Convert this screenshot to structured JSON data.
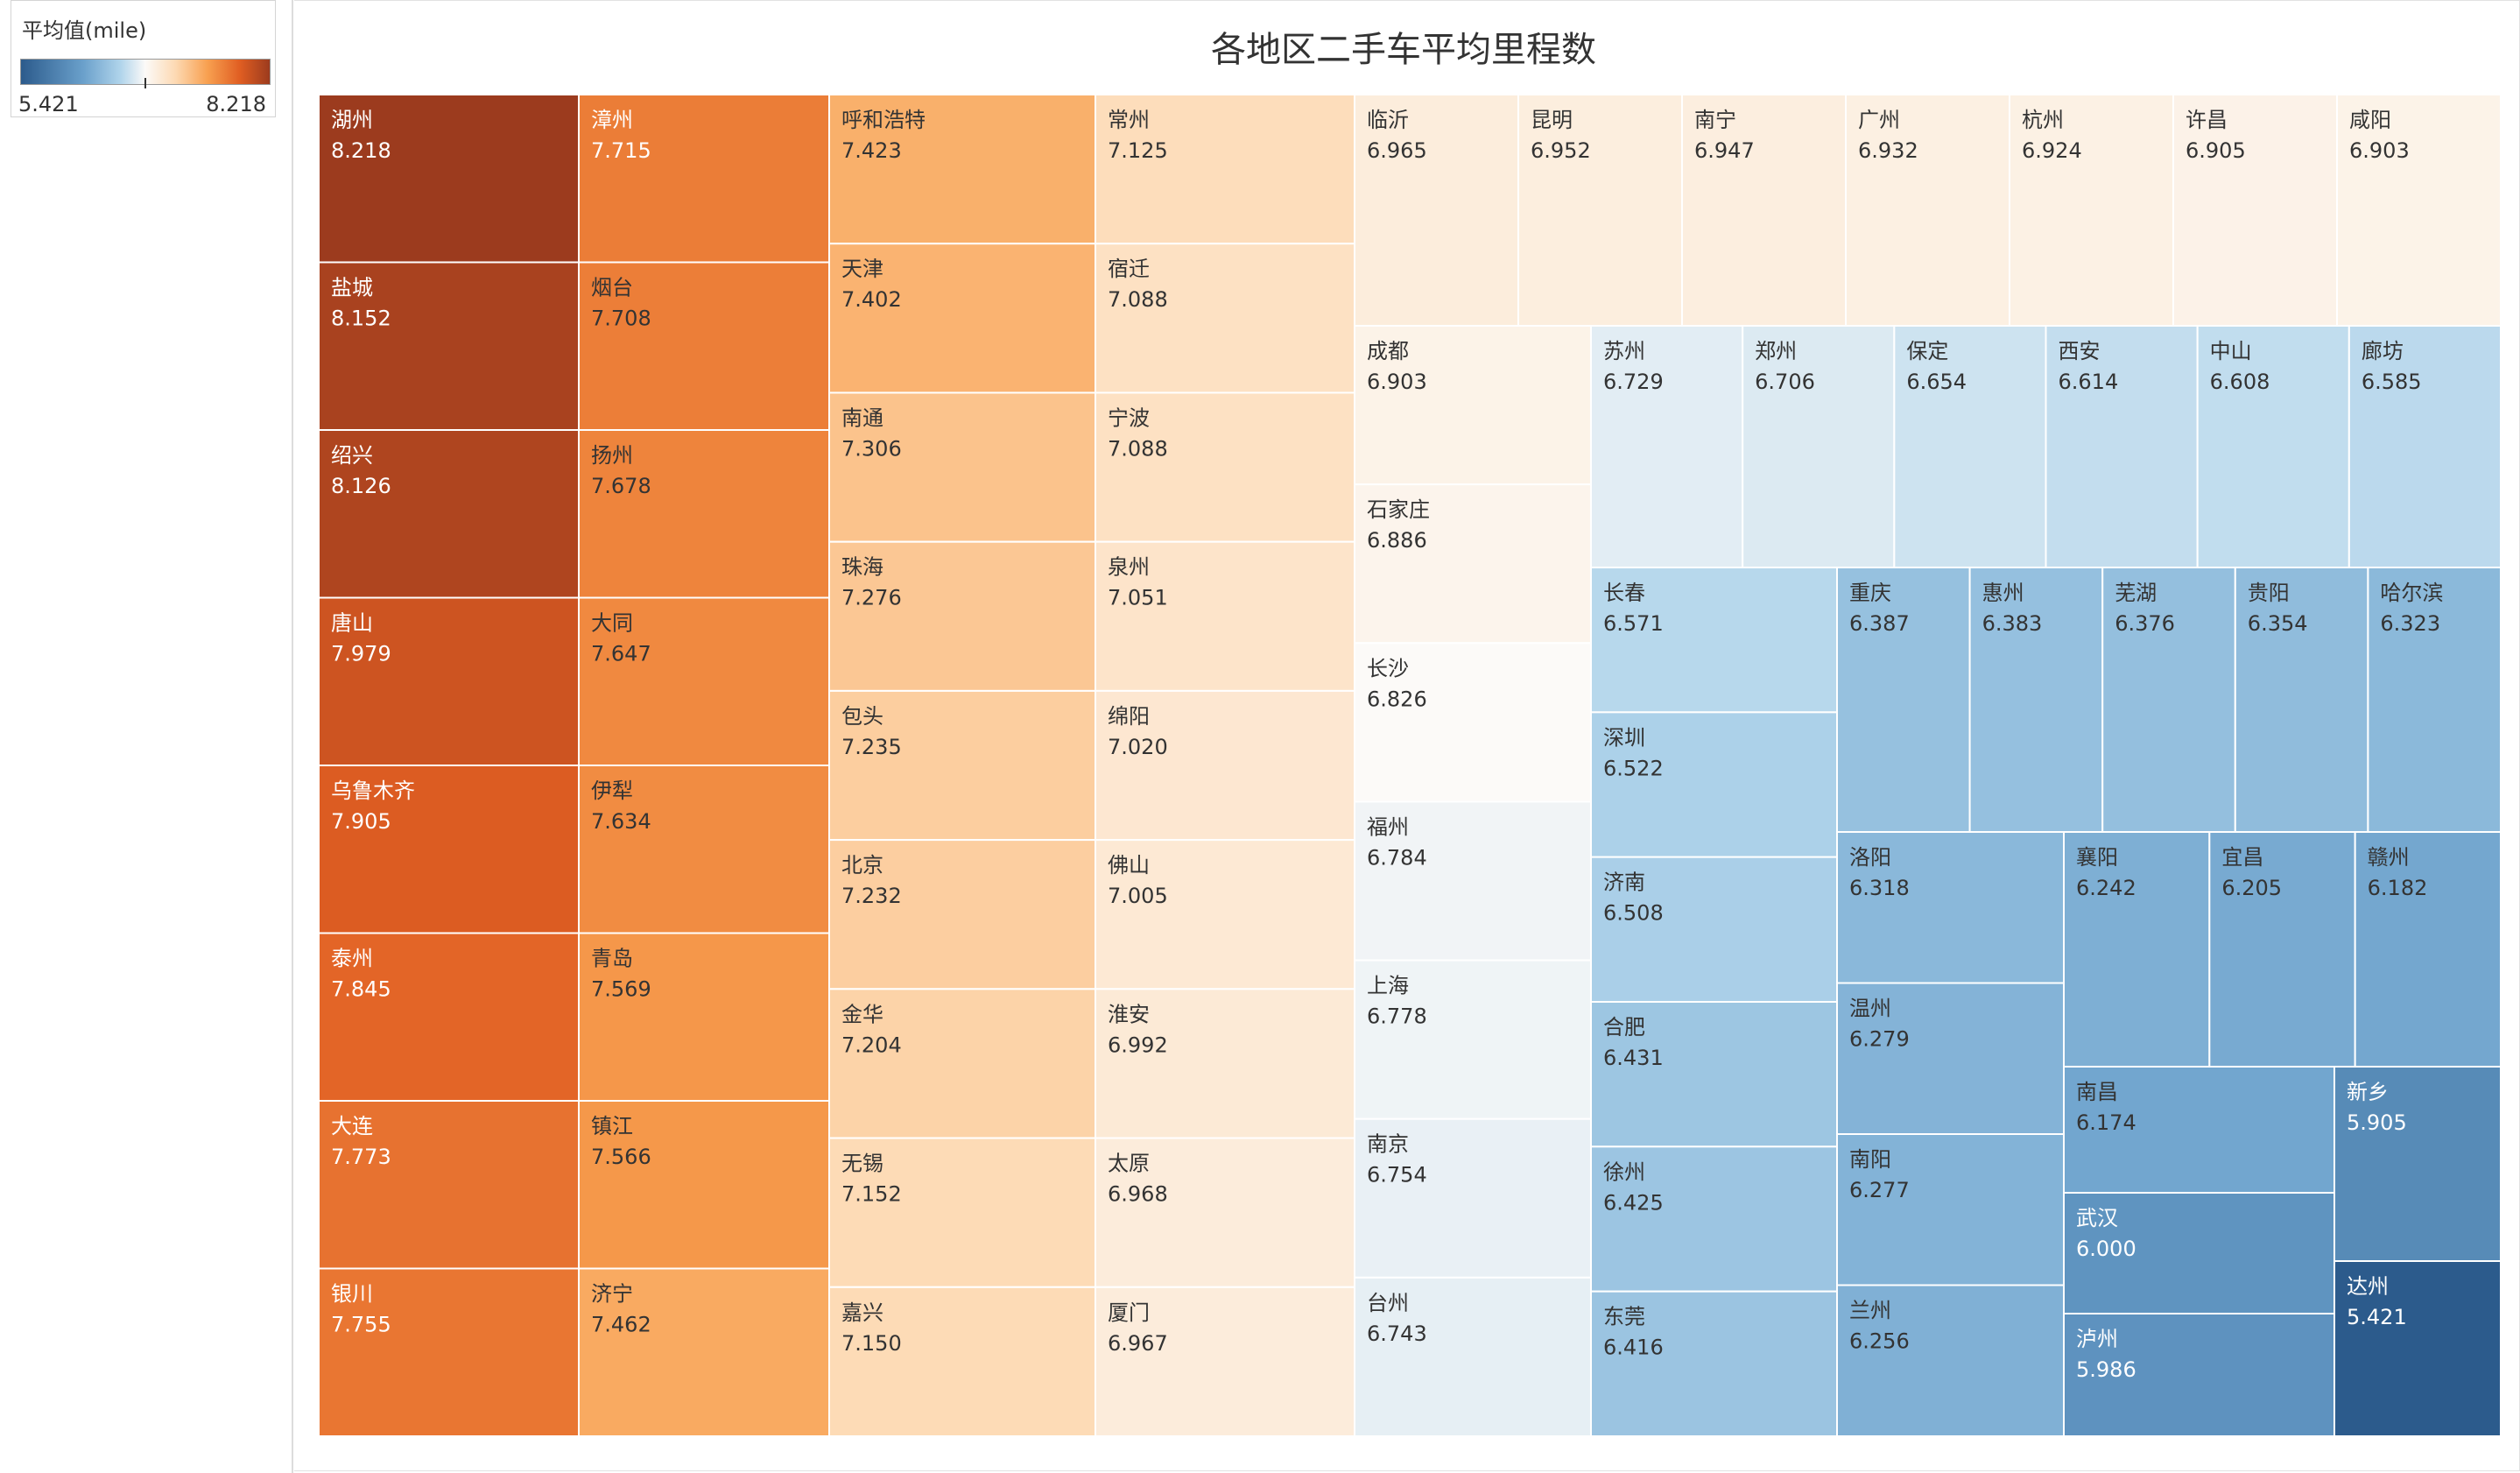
{
  "chart_data": {
    "type": "treemap",
    "title": "各地区二手车平均里程数",
    "legend": {
      "title": "平均值(mile)",
      "min_label": "5.421",
      "max_label": "8.218",
      "min": 5.421,
      "max": 8.218,
      "mid": 6.826,
      "colors": {
        "low": "#2c5b8c",
        "mid": "#fcfaf8",
        "high": "#9c3b1e"
      },
      "placement": "top-left"
    },
    "cells": [
      {
        "name": "湖州",
        "value": 8.218
      },
      {
        "name": "盐城",
        "value": 8.152
      },
      {
        "name": "绍兴",
        "value": 8.126
      },
      {
        "name": "唐山",
        "value": 7.979
      },
      {
        "name": "乌鲁木齐",
        "value": 7.905
      },
      {
        "name": "泰州",
        "value": 7.845
      },
      {
        "name": "大连",
        "value": 7.773
      },
      {
        "name": "银川",
        "value": 7.755
      },
      {
        "name": "漳州",
        "value": 7.715
      },
      {
        "name": "烟台",
        "value": 7.708
      },
      {
        "name": "扬州",
        "value": 7.678
      },
      {
        "name": "大同",
        "value": 7.647
      },
      {
        "name": "伊犁",
        "value": 7.634
      },
      {
        "name": "青岛",
        "value": 7.569
      },
      {
        "name": "镇江",
        "value": 7.566
      },
      {
        "name": "济宁",
        "value": 7.462
      },
      {
        "name": "呼和浩特",
        "value": 7.423
      },
      {
        "name": "天津",
        "value": 7.402
      },
      {
        "name": "南通",
        "value": 7.306
      },
      {
        "name": "珠海",
        "value": 7.276
      },
      {
        "name": "包头",
        "value": 7.235
      },
      {
        "name": "北京",
        "value": 7.232
      },
      {
        "name": "金华",
        "value": 7.204
      },
      {
        "name": "无锡",
        "value": 7.152
      },
      {
        "name": "嘉兴",
        "value": 7.15
      },
      {
        "name": "常州",
        "value": 7.125
      },
      {
        "name": "宿迁",
        "value": 7.088
      },
      {
        "name": "宁波",
        "value": 7.088
      },
      {
        "name": "泉州",
        "value": 7.051
      },
      {
        "name": "绵阳",
        "value": 7.02
      },
      {
        "name": "佛山",
        "value": 7.005
      },
      {
        "name": "淮安",
        "value": 6.992
      },
      {
        "name": "太原",
        "value": 6.968
      },
      {
        "name": "厦门",
        "value": 6.967
      },
      {
        "name": "临沂",
        "value": 6.965
      },
      {
        "name": "昆明",
        "value": 6.952
      },
      {
        "name": "南宁",
        "value": 6.947
      },
      {
        "name": "广州",
        "value": 6.932
      },
      {
        "name": "杭州",
        "value": 6.924
      },
      {
        "name": "许昌",
        "value": 6.905
      },
      {
        "name": "咸阳",
        "value": 6.903
      },
      {
        "name": "成都",
        "value": 6.903
      },
      {
        "name": "石家庄",
        "value": 6.886
      },
      {
        "name": "长沙",
        "value": 6.826
      },
      {
        "name": "福州",
        "value": 6.784
      },
      {
        "name": "上海",
        "value": 6.778
      },
      {
        "name": "南京",
        "value": 6.754
      },
      {
        "name": "台州",
        "value": 6.743
      },
      {
        "name": "苏州",
        "value": 6.729
      },
      {
        "name": "郑州",
        "value": 6.706
      },
      {
        "name": "保定",
        "value": 6.654
      },
      {
        "name": "西安",
        "value": 6.614
      },
      {
        "name": "中山",
        "value": 6.608
      },
      {
        "name": "廊坊",
        "value": 6.585
      },
      {
        "name": "长春",
        "value": 6.571
      },
      {
        "name": "深圳",
        "value": 6.522
      },
      {
        "name": "济南",
        "value": 6.508
      },
      {
        "name": "合肥",
        "value": 6.431
      },
      {
        "name": "徐州",
        "value": 6.425
      },
      {
        "name": "东莞",
        "value": 6.416
      },
      {
        "name": "重庆",
        "value": 6.387
      },
      {
        "name": "惠州",
        "value": 6.383
      },
      {
        "name": "芜湖",
        "value": 6.376
      },
      {
        "name": "贵阳",
        "value": 6.354
      },
      {
        "name": "哈尔滨",
        "value": 6.323
      },
      {
        "name": "洛阳",
        "value": 6.318
      },
      {
        "name": "温州",
        "value": 6.279
      },
      {
        "name": "南阳",
        "value": 6.277
      },
      {
        "name": "兰州",
        "value": 6.256
      },
      {
        "name": "襄阳",
        "value": 6.242
      },
      {
        "name": "宜昌",
        "value": 6.205
      },
      {
        "name": "赣州",
        "value": 6.182
      },
      {
        "name": "南昌",
        "value": 6.174
      },
      {
        "name": "武汉",
        "value": 6.0
      },
      {
        "name": "泸州",
        "value": 5.986
      },
      {
        "name": "新乡",
        "value": 5.905
      },
      {
        "name": "达州",
        "value": 5.421
      }
    ]
  }
}
